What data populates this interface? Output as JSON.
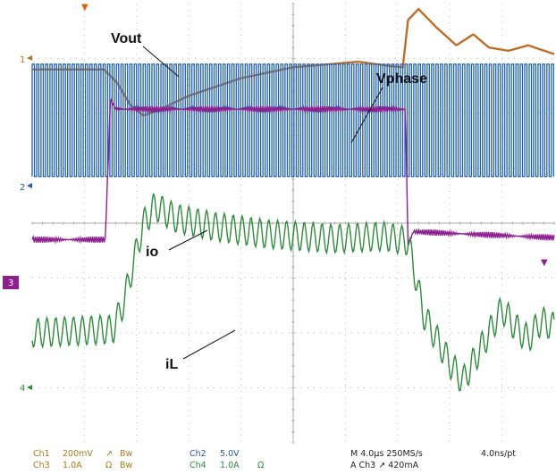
{
  "colors": {
    "ch1": "#a8781a",
    "ch1_overlay": "#e04a2a",
    "ch2": "#2a55a8",
    "ch2_overlay": "#4ec8d8",
    "ch3": "#8e1f8e",
    "ch4": "#2e8b3c",
    "grid": "#b9b9b9"
  },
  "chart_data": {
    "type": "line",
    "title": "",
    "x_unit": "µs",
    "x_range": [
      -20,
      20
    ],
    "divisions": {
      "x": 10,
      "y": 8
    },
    "grid": true,
    "series": [
      {
        "name": "Vout",
        "channel": 1,
        "marker_label": "1",
        "points": [
          [
            -20,
            0
          ],
          [
            -14.5,
            0
          ],
          [
            -13.5,
            -0.12
          ],
          [
            -12.5,
            -0.32
          ],
          [
            -11.5,
            -0.42
          ],
          [
            -10.5,
            -0.38
          ],
          [
            -8,
            -0.24
          ],
          [
            -4,
            -0.08
          ],
          [
            0,
            0.02
          ],
          [
            5,
            0.07
          ],
          [
            7.5,
            0.03
          ],
          [
            8.4,
            0.02
          ],
          [
            8.8,
            0.45
          ],
          [
            9.6,
            0.55
          ],
          [
            11,
            0.38
          ],
          [
            12.5,
            0.22
          ],
          [
            13.8,
            0.32
          ],
          [
            15,
            0.2
          ],
          [
            16.5,
            0.17
          ],
          [
            18,
            0.22
          ],
          [
            20,
            0.14
          ]
        ]
      },
      {
        "name": "Vphase",
        "channel": 2,
        "marker_label": "2",
        "points": [
          [
            -20,
            0
          ],
          [
            -19.6,
            0.62
          ],
          [
            -19.2,
            0.62
          ],
          [
            -19.0,
            0
          ],
          [
            -18.6,
            0
          ],
          [
            -18.2,
            0.62
          ],
          [
            -17.8,
            0.62
          ],
          [
            -17.6,
            0
          ],
          [
            -14.6,
            0
          ],
          [
            -14.2,
            0.62
          ],
          [
            -13.8,
            0.62
          ],
          [
            -13.6,
            0
          ],
          [
            -13.2,
            0
          ],
          [
            -12.8,
            0.62
          ],
          [
            -12.4,
            0.62
          ],
          [
            -12.2,
            0
          ],
          [
            0,
            0
          ],
          [
            0.4,
            0.62
          ],
          [
            0.8,
            0.62
          ],
          [
            1.0,
            0
          ],
          [
            1.4,
            0
          ],
          [
            1.8,
            0.62
          ],
          [
            2.2,
            0.62
          ],
          [
            2.4,
            0
          ],
          [
            19.6,
            0
          ],
          [
            20,
            0.62
          ]
        ]
      },
      {
        "name": "io",
        "channel": 3,
        "marker_label": "3",
        "points": [
          [
            -20,
            0
          ],
          [
            -14.4,
            0
          ],
          [
            -14.0,
            0.71
          ],
          [
            -13.6,
            0.66
          ],
          [
            8.6,
            0.66
          ],
          [
            8.8,
            -0.03
          ],
          [
            9.2,
            0.04
          ],
          [
            20,
            0.01
          ]
        ]
      },
      {
        "name": "iL",
        "channel": 4,
        "marker_label": "4",
        "points": [
          [
            -20,
            0
          ],
          [
            -13.8,
            0.03
          ],
          [
            -13,
            0.25
          ],
          [
            -11.5,
            0.9
          ],
          [
            -10.6,
            1.05
          ],
          [
            -9,
            0.95
          ],
          [
            -6,
            0.88
          ],
          [
            -2,
            0.82
          ],
          [
            3,
            0.78
          ],
          [
            7,
            0.8
          ],
          [
            8.8,
            0.76
          ],
          [
            10,
            0.15
          ],
          [
            12,
            -0.25
          ],
          [
            13,
            -0.4
          ],
          [
            14,
            -0.2
          ],
          [
            15,
            0.0
          ],
          [
            16,
            0.2
          ],
          [
            17,
            0.05
          ],
          [
            18,
            -0.05
          ],
          [
            19,
            0.1
          ],
          [
            20,
            0.05
          ]
        ]
      }
    ],
    "annotations": [
      "Vout",
      "Vphase",
      "io",
      "iL"
    ],
    "readout": {
      "row1": [
        "Ch1",
        "200mV",
        "↗",
        "Bw",
        "Ch2",
        "5.0V",
        "M 4.0µs 250MS/s",
        "4.0ns/pt"
      ],
      "row2": [
        "Ch3",
        "1.0A",
        "Ω",
        "Bw",
        "Ch4",
        "1.0A",
        "Ω",
        "A  Ch3  ↗  420mA"
      ]
    },
    "trigger_marker": "▼"
  }
}
